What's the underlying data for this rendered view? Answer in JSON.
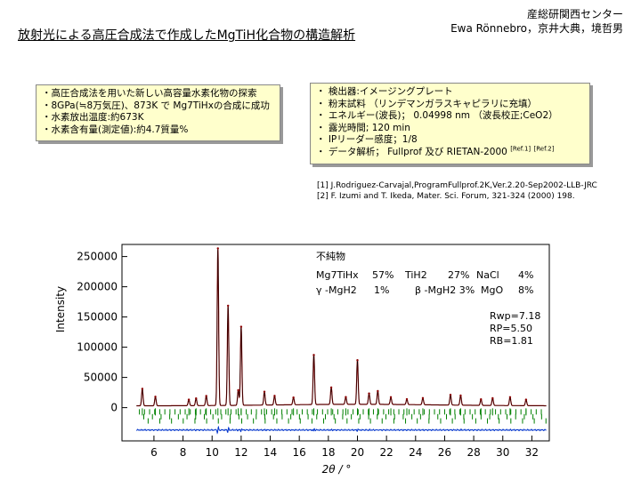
{
  "title": "放射光による高圧合成法で作成したMgTiH化合物の構造解析",
  "affiliation": {
    "org": "産総研関西センター",
    "authors": "Ewa Rönnebro，京井大典，境哲男"
  },
  "summary": {
    "items": [
      "・高圧合成法を用いた新しい高容量水素化物の探索",
      "・8GPa(≒8万気圧)、873K で Mg7TiHxの合成に成功",
      "・水素放出温度:約673K",
      "・水素含有量(測定値):約4.7質量%"
    ]
  },
  "conditions": {
    "items": [
      "・ 検出器:イメージングプレート",
      "・ 粉末試料 （リンデマンガラスキャピラリに充填）",
      "・ エネルギー(波長)； 0.04998 nm （波長校正;CeO2）",
      "・ 露光時間; 120 min",
      "・ IPリーダー感度；1/8",
      "・ データ解析； Fullprof  及び RIETAN-2000"
    ],
    "ref1": "[Ref.1]",
    "ref2": "[Ref.2]"
  },
  "references": [
    "[1] J.Rodriguez-Carvajal,ProgramFullprof.2K,Ver.2.20-Sep2002-LLB-JRC",
    "[2]  F. Izumi and T. Ikeda, Mater. Sci. Forum, 321-324 (2000) 198."
  ],
  "phases": {
    "heading": "不純物",
    "row1": [
      "Mg7TiHx",
      "57%",
      "TiH2",
      "27%",
      "NaCl",
      "4%"
    ],
    "row2": [
      "γ -MgH2",
      "1%",
      "β -MgH2 3%",
      "MgO",
      "8%"
    ]
  },
  "r_factors": [
    "Rwp=7.18",
    "RP=5.50",
    "RB=1.81"
  ],
  "chart_data": {
    "type": "line",
    "xlabel": "2θ / °",
    "ylabel": "Intensity",
    "xlim": [
      3.8,
      33.2
    ],
    "ylim": [
      -55000,
      270000
    ],
    "y_ticks": [
      0,
      50000,
      100000,
      150000,
      200000,
      250000
    ],
    "x_ticks": [
      6,
      8,
      10,
      12,
      14,
      16,
      18,
      20,
      22,
      24,
      26,
      28,
      30,
      32
    ],
    "colors": {
      "observed": "#8b0000",
      "calculated": "#000000",
      "bragg": "#008000",
      "difference": "#0033cc"
    },
    "peaks": [
      {
        "x": 5.2,
        "y": 28000
      },
      {
        "x": 6.1,
        "y": 15000
      },
      {
        "x": 8.4,
        "y": 10000
      },
      {
        "x": 8.9,
        "y": 12000
      },
      {
        "x": 9.6,
        "y": 16000
      },
      {
        "x": 10.4,
        "y": 260000
      },
      {
        "x": 11.1,
        "y": 165000
      },
      {
        "x": 11.8,
        "y": 25000
      },
      {
        "x": 12.0,
        "y": 130000
      },
      {
        "x": 13.6,
        "y": 22000
      },
      {
        "x": 14.3,
        "y": 15000
      },
      {
        "x": 15.6,
        "y": 12000
      },
      {
        "x": 17.0,
        "y": 82000
      },
      {
        "x": 18.2,
        "y": 28000
      },
      {
        "x": 19.2,
        "y": 12000
      },
      {
        "x": 20.0,
        "y": 73000
      },
      {
        "x": 20.8,
        "y": 18000
      },
      {
        "x": 21.4,
        "y": 22000
      },
      {
        "x": 22.3,
        "y": 12000
      },
      {
        "x": 23.4,
        "y": 9000
      },
      {
        "x": 24.5,
        "y": 11000
      },
      {
        "x": 26.4,
        "y": 17000
      },
      {
        "x": 27.1,
        "y": 16000
      },
      {
        "x": 28.5,
        "y": 10000
      },
      {
        "x": 29.3,
        "y": 12000
      },
      {
        "x": 30.5,
        "y": 14000
      },
      {
        "x": 31.6,
        "y": 10000
      }
    ]
  }
}
